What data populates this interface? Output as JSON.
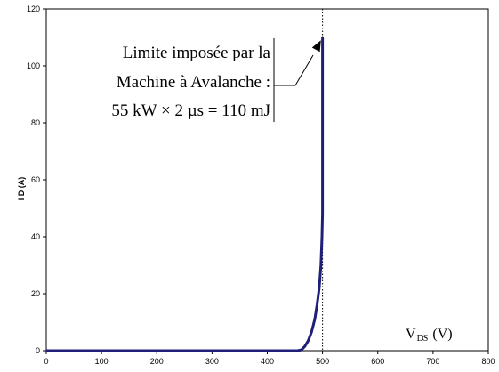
{
  "chart_data": {
    "type": "line",
    "title": "",
    "ylabel": "I D (A)",
    "xlabel_main": "V",
    "xlabel_sub": "DS",
    "xlabel_unit": "(V)",
    "xlim": [
      0,
      800
    ],
    "ylim": [
      0,
      120
    ],
    "x_ticks": [
      0,
      100,
      200,
      300,
      400,
      500,
      600,
      700,
      800
    ],
    "y_ticks": [
      0,
      20,
      40,
      60,
      80,
      100,
      120
    ],
    "grid": false,
    "legend": "none",
    "series_color": "#1f1f7a",
    "series": [
      {
        "x": [
          0,
          200,
          400,
          455,
          462,
          468,
          474,
          480,
          486,
          490,
          494,
          497,
          499,
          500,
          500
        ],
        "y": [
          0,
          0,
          0,
          0,
          0.3,
          1.5,
          3.5,
          6.5,
          11,
          16,
          22,
          30,
          40,
          48,
          110
        ]
      }
    ],
    "vline": {
      "x": 500,
      "style": "dotted"
    },
    "annotation": {
      "lines": [
        "Limite imposée par la",
        "Machine à Avalanche :",
        "55 kW × 2 µs = 110 mJ"
      ],
      "arrow_target": {
        "x": 497,
        "y": 109
      }
    }
  }
}
